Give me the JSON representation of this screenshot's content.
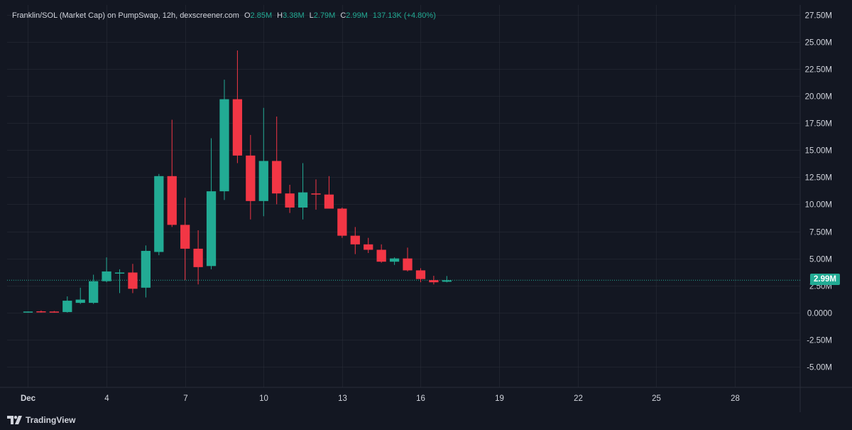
{
  "legend": {
    "title": "Franklin/SOL (Market Cap) on PumpSwap, 12h, dexscreener.com",
    "o_label": "O",
    "o_value": "2.85M",
    "h_label": "H",
    "h_value": "3.38M",
    "l_label": "L",
    "l_value": "2.79M",
    "c_label": "C",
    "c_value": "2.99M",
    "change": "137.13K (+4.80%)"
  },
  "price_tag": "2.99M",
  "brand": "TradingView",
  "colors": {
    "background": "#131722",
    "grid": "#2a2e39",
    "up": "#22ab94",
    "down": "#f23645",
    "text": "#d1d4dc"
  },
  "chart_data": {
    "type": "candlestick",
    "title": "Franklin/SOL (Market Cap) on PumpSwap, 12h, dexscreener.com",
    "y_unit": "M",
    "ylim": [
      -6.9,
      28.4
    ],
    "y_ticks": [
      27.5,
      25,
      22.5,
      20,
      17.5,
      15,
      12.5,
      10,
      7.5,
      5,
      2.5,
      0,
      -2.5,
      -5
    ],
    "y_tick_labels": [
      "27.50M",
      "25.00M",
      "22.50M",
      "20.00M",
      "17.50M",
      "15.00M",
      "12.50M",
      "10.00M",
      "7.50M",
      "5.00M",
      "2.50M",
      "0.0000",
      "-2.50M",
      "-5.00M"
    ],
    "x_unit": "days since Dec 1",
    "xlim": [
      -0.8,
      29.5
    ],
    "x_ticks": [
      0,
      3,
      6,
      9,
      12,
      15,
      18,
      21,
      24,
      27
    ],
    "x_tick_labels": [
      "Dec",
      "4",
      "7",
      "10",
      "13",
      "16",
      "19",
      "22",
      "25",
      "28"
    ],
    "last_price": 2.99,
    "candles": [
      {
        "t": 0.0,
        "o": 0.05,
        "h": 0.1,
        "l": 0.0,
        "c": 0.1
      },
      {
        "t": 0.5,
        "o": 0.12,
        "h": 0.2,
        "l": 0.0,
        "c": 0.05
      },
      {
        "t": 1.0,
        "o": 0.1,
        "h": 0.15,
        "l": 0.0,
        "c": 0.05
      },
      {
        "t": 1.5,
        "o": 0.05,
        "h": 1.5,
        "l": 0.0,
        "c": 1.1
      },
      {
        "t": 2.0,
        "o": 0.9,
        "h": 2.3,
        "l": 0.8,
        "c": 1.2
      },
      {
        "t": 2.5,
        "o": 0.9,
        "h": 3.5,
        "l": 0.8,
        "c": 2.9
      },
      {
        "t": 3.0,
        "o": 2.9,
        "h": 5.1,
        "l": 2.8,
        "c": 3.8
      },
      {
        "t": 3.5,
        "o": 3.7,
        "h": 4.0,
        "l": 1.8,
        "c": 3.7
      },
      {
        "t": 4.0,
        "o": 3.7,
        "h": 4.5,
        "l": 1.8,
        "c": 2.2
      },
      {
        "t": 4.5,
        "o": 2.3,
        "h": 6.2,
        "l": 1.4,
        "c": 5.7
      },
      {
        "t": 5.0,
        "o": 5.6,
        "h": 12.8,
        "l": 5.3,
        "c": 12.6
      },
      {
        "t": 5.5,
        "o": 12.6,
        "h": 17.8,
        "l": 7.9,
        "c": 8.1
      },
      {
        "t": 6.0,
        "o": 8.1,
        "h": 10.6,
        "l": 3.0,
        "c": 5.9
      },
      {
        "t": 6.5,
        "o": 5.9,
        "h": 7.6,
        "l": 2.6,
        "c": 4.2
      },
      {
        "t": 7.0,
        "o": 4.3,
        "h": 16.1,
        "l": 4.0,
        "c": 11.2
      },
      {
        "t": 7.5,
        "o": 11.2,
        "h": 21.5,
        "l": 10.4,
        "c": 19.7
      },
      {
        "t": 8.0,
        "o": 19.7,
        "h": 24.2,
        "l": 13.8,
        "c": 14.5
      },
      {
        "t": 8.5,
        "o": 14.5,
        "h": 16.4,
        "l": 8.6,
        "c": 10.3
      },
      {
        "t": 9.0,
        "o": 10.3,
        "h": 18.9,
        "l": 8.9,
        "c": 14.0
      },
      {
        "t": 9.5,
        "o": 14.0,
        "h": 18.1,
        "l": 10.0,
        "c": 11.0
      },
      {
        "t": 10.0,
        "o": 11.0,
        "h": 11.8,
        "l": 9.2,
        "c": 9.7
      },
      {
        "t": 10.5,
        "o": 9.7,
        "h": 13.8,
        "l": 8.6,
        "c": 11.1
      },
      {
        "t": 11.0,
        "o": 11.0,
        "h": 12.3,
        "l": 9.5,
        "c": 10.9
      },
      {
        "t": 11.5,
        "o": 10.9,
        "h": 12.6,
        "l": 9.6,
        "c": 9.6
      },
      {
        "t": 12.0,
        "o": 9.6,
        "h": 9.7,
        "l": 6.9,
        "c": 7.1
      },
      {
        "t": 12.5,
        "o": 7.1,
        "h": 7.9,
        "l": 5.4,
        "c": 6.3
      },
      {
        "t": 13.0,
        "o": 6.3,
        "h": 6.9,
        "l": 5.5,
        "c": 5.8
      },
      {
        "t": 13.5,
        "o": 5.8,
        "h": 6.3,
        "l": 4.6,
        "c": 4.7
      },
      {
        "t": 14.0,
        "o": 4.7,
        "h": 5.1,
        "l": 4.4,
        "c": 5.0
      },
      {
        "t": 14.5,
        "o": 5.0,
        "h": 6.0,
        "l": 3.8,
        "c": 3.9
      },
      {
        "t": 15.0,
        "o": 3.9,
        "h": 4.1,
        "l": 2.8,
        "c": 3.1
      },
      {
        "t": 15.5,
        "o": 3.0,
        "h": 3.4,
        "l": 2.6,
        "c": 2.8
      },
      {
        "t": 16.0,
        "o": 2.85,
        "h": 3.38,
        "l": 2.79,
        "c": 2.99
      }
    ]
  }
}
